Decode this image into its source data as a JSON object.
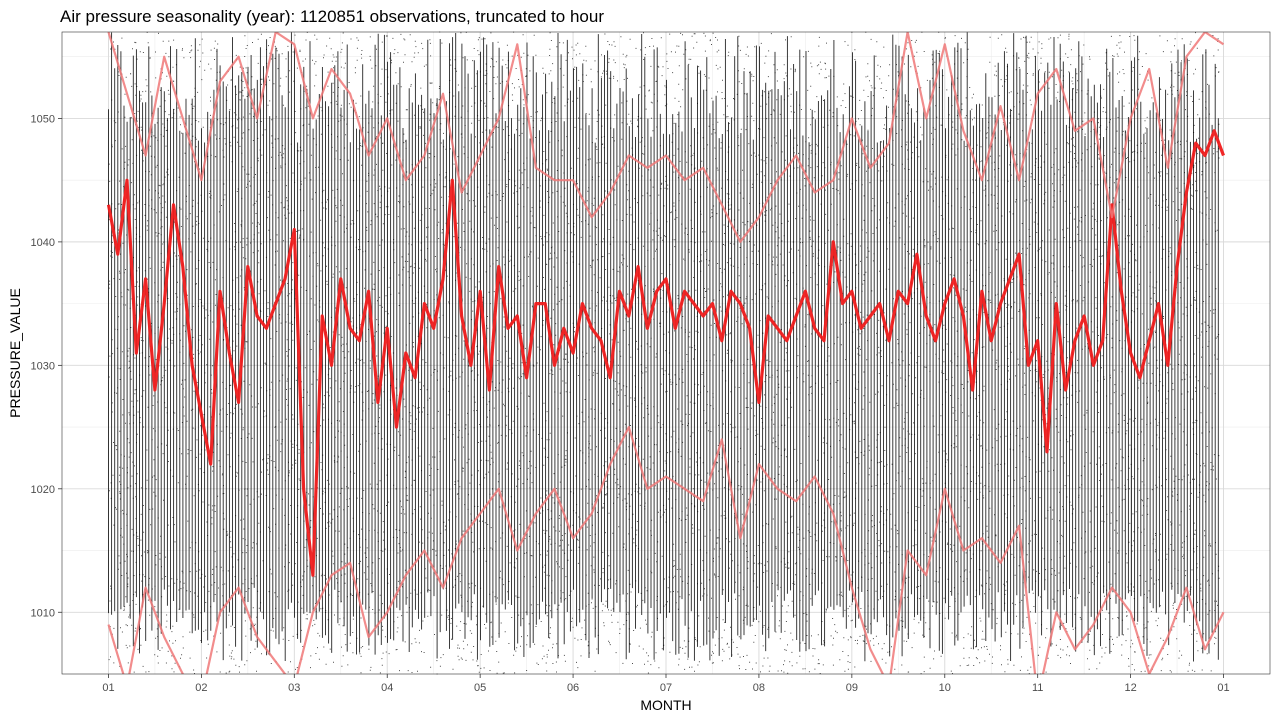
{
  "chart_data": {
    "type": "scatter",
    "title": "Air pressure seasonality (year): 1120851 observations, truncated to hour",
    "xlabel": "MONTH",
    "ylabel": "PRESSURE_VALUE",
    "x_ticks": [
      "01",
      "02",
      "03",
      "04",
      "05",
      "06",
      "07",
      "08",
      "09",
      "10",
      "11",
      "12",
      "01"
    ],
    "y_ticks": [
      1010,
      1020,
      1030,
      1040,
      1050
    ],
    "ylim": [
      1005,
      1057
    ],
    "grid": true,
    "series": [
      {
        "role": "observations (black points)",
        "color": "#000000",
        "description_values_range": [
          1005,
          1057
        ]
      },
      {
        "role": "mean",
        "color": "#f01c1c",
        "x_month": [
          1.0,
          1.1,
          1.2,
          1.3,
          1.4,
          1.5,
          1.6,
          1.7,
          1.8,
          1.9,
          2.0,
          2.1,
          2.2,
          2.3,
          2.4,
          2.5,
          2.6,
          2.7,
          2.8,
          2.9,
          3.0,
          3.1,
          3.2,
          3.3,
          3.4,
          3.5,
          3.6,
          3.7,
          3.8,
          3.9,
          4.0,
          4.1,
          4.2,
          4.3,
          4.4,
          4.5,
          4.6,
          4.7,
          4.8,
          4.9,
          5.0,
          5.1,
          5.2,
          5.3,
          5.4,
          5.5,
          5.6,
          5.7,
          5.8,
          5.9,
          6.0,
          6.1,
          6.2,
          6.3,
          6.4,
          6.5,
          6.6,
          6.7,
          6.8,
          6.9,
          7.0,
          7.1,
          7.2,
          7.3,
          7.4,
          7.5,
          7.6,
          7.7,
          7.8,
          7.9,
          8.0,
          8.1,
          8.2,
          8.3,
          8.4,
          8.5,
          8.6,
          8.7,
          8.8,
          8.9,
          9.0,
          9.1,
          9.2,
          9.3,
          9.4,
          9.5,
          9.6,
          9.7,
          9.8,
          9.9,
          10.0,
          10.1,
          10.2,
          10.3,
          10.4,
          10.5,
          10.6,
          10.7,
          10.8,
          10.9,
          11.0,
          11.1,
          11.2,
          11.3,
          11.4,
          11.5,
          11.6,
          11.7,
          11.8,
          11.9,
          12.0,
          12.1,
          12.2,
          12.3,
          12.4,
          12.5,
          12.6,
          12.7,
          12.8,
          12.9,
          13.0
        ],
        "values": [
          1043,
          1039,
          1045,
          1031,
          1037,
          1028,
          1035,
          1043,
          1038,
          1030,
          1026,
          1022,
          1036,
          1031,
          1027,
          1038,
          1034,
          1033,
          1035,
          1037,
          1041,
          1020,
          1013,
          1034,
          1030,
          1037,
          1033,
          1032,
          1036,
          1027,
          1033,
          1025,
          1031,
          1029,
          1035,
          1033,
          1037,
          1045,
          1034,
          1030,
          1036,
          1028,
          1038,
          1033,
          1034,
          1029,
          1035,
          1035,
          1030,
          1033,
          1031,
          1035,
          1033,
          1032,
          1029,
          1036,
          1034,
          1038,
          1033,
          1036,
          1037,
          1033,
          1036,
          1035,
          1034,
          1035,
          1032,
          1036,
          1035,
          1033,
          1027,
          1034,
          1033,
          1032,
          1034,
          1036,
          1033,
          1032,
          1040,
          1035,
          1036,
          1033,
          1034,
          1035,
          1032,
          1036,
          1035,
          1039,
          1034,
          1032,
          1035,
          1037,
          1034,
          1028,
          1036,
          1032,
          1035,
          1037,
          1039,
          1030,
          1032,
          1023,
          1035,
          1028,
          1032,
          1034,
          1030,
          1032,
          1043,
          1036,
          1031,
          1029,
          1032,
          1035,
          1030,
          1038,
          1044,
          1048,
          1047,
          1049,
          1047
        ]
      },
      {
        "role": "upper band",
        "color": "#f07878",
        "x_month": [
          1.0,
          1.2,
          1.4,
          1.6,
          1.8,
          2.0,
          2.2,
          2.4,
          2.6,
          2.8,
          3.0,
          3.2,
          3.4,
          3.6,
          3.8,
          4.0,
          4.2,
          4.4,
          4.6,
          4.8,
          5.0,
          5.2,
          5.4,
          5.6,
          5.8,
          6.0,
          6.2,
          6.4,
          6.6,
          6.8,
          7.0,
          7.2,
          7.4,
          7.6,
          7.8,
          8.0,
          8.2,
          8.4,
          8.6,
          8.8,
          9.0,
          9.2,
          9.4,
          9.6,
          9.8,
          10.0,
          10.2,
          10.4,
          10.6,
          10.8,
          11.0,
          11.2,
          11.4,
          11.6,
          11.8,
          12.0,
          12.2,
          12.4,
          12.6,
          12.8,
          13.0
        ],
        "values": [
          1057,
          1052,
          1047,
          1055,
          1050,
          1045,
          1053,
          1055,
          1050,
          1057,
          1056,
          1050,
          1054,
          1052,
          1047,
          1050,
          1045,
          1047,
          1052,
          1044,
          1047,
          1050,
          1056,
          1046,
          1045,
          1045,
          1042,
          1044,
          1047,
          1046,
          1047,
          1045,
          1046,
          1043,
          1040,
          1042,
          1045,
          1047,
          1044,
          1045,
          1050,
          1046,
          1048,
          1057,
          1050,
          1056,
          1049,
          1045,
          1051,
          1045,
          1052,
          1054,
          1049,
          1050,
          1042,
          1050,
          1054,
          1046,
          1055,
          1057,
          1056
        ]
      },
      {
        "role": "lower band",
        "color": "#f07878",
        "x_month": [
          1.0,
          1.2,
          1.4,
          1.6,
          1.8,
          2.0,
          2.2,
          2.4,
          2.6,
          2.8,
          3.0,
          3.2,
          3.4,
          3.6,
          3.8,
          4.0,
          4.2,
          4.4,
          4.6,
          4.8,
          5.0,
          5.2,
          5.4,
          5.6,
          5.8,
          6.0,
          6.2,
          6.4,
          6.6,
          6.8,
          7.0,
          7.2,
          7.4,
          7.6,
          7.8,
          8.0,
          8.2,
          8.4,
          8.6,
          8.8,
          9.0,
          9.2,
          9.4,
          9.6,
          9.8,
          10.0,
          10.2,
          10.4,
          10.6,
          10.8,
          11.0,
          11.2,
          11.4,
          11.6,
          11.8,
          12.0,
          12.2,
          12.4,
          12.6,
          12.8,
          13.0
        ],
        "values": [
          1009,
          1004,
          1012,
          1008,
          1005,
          1003,
          1010,
          1012,
          1008,
          1006,
          1004,
          1010,
          1013,
          1014,
          1008,
          1010,
          1013,
          1015,
          1012,
          1016,
          1018,
          1020,
          1015,
          1018,
          1020,
          1016,
          1018,
          1022,
          1025,
          1020,
          1021,
          1020,
          1019,
          1024,
          1016,
          1022,
          1020,
          1019,
          1021,
          1018,
          1012,
          1007,
          1004,
          1015,
          1013,
          1020,
          1015,
          1016,
          1014,
          1017,
          1003,
          1010,
          1007,
          1009,
          1012,
          1010,
          1005,
          1008,
          1012,
          1007,
          1010
        ]
      }
    ]
  }
}
